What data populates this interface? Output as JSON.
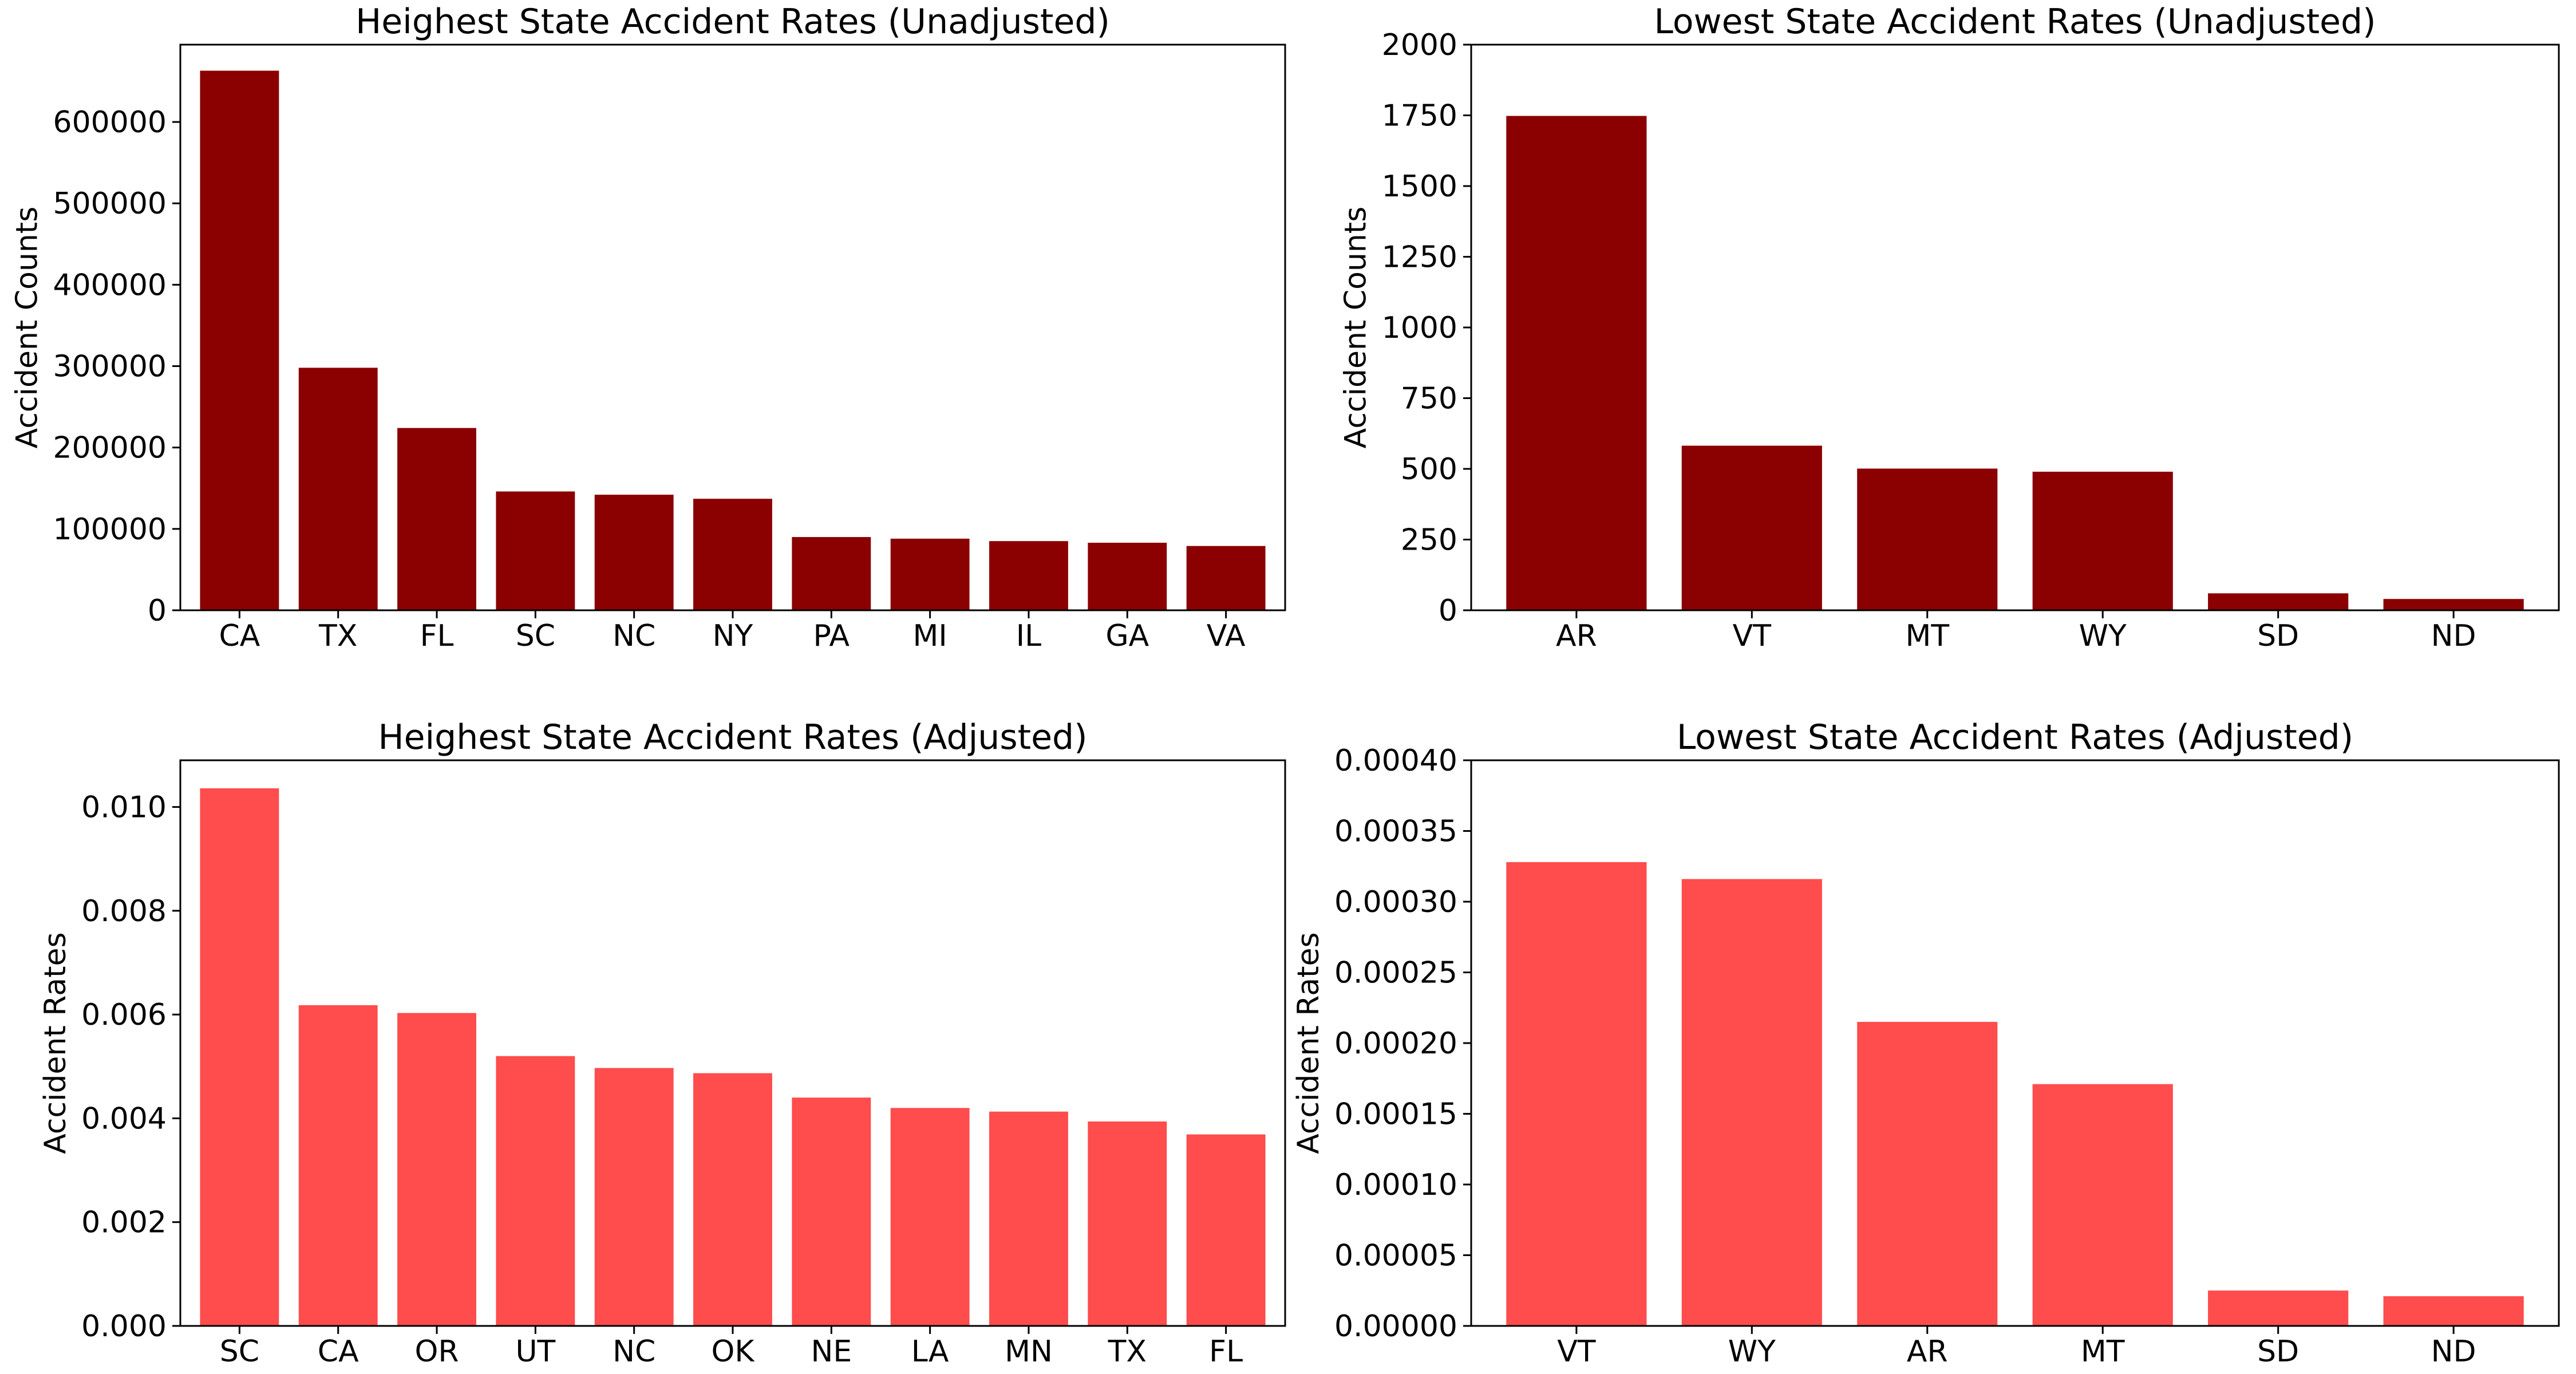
{
  "chart_data": [
    {
      "type": "bar",
      "title": "Heighest State Accident Rates (Unadjusted)",
      "xlabel": "",
      "ylabel": "Accident Counts",
      "categories": [
        "CA",
        "TX",
        "FL",
        "SC",
        "NC",
        "NY",
        "PA",
        "MI",
        "IL",
        "GA",
        "VA"
      ],
      "values": [
        663000,
        298000,
        224000,
        146000,
        142000,
        137000,
        90000,
        88000,
        85000,
        83000,
        79000
      ],
      "ylim": [
        0,
        695000
      ],
      "yticks": [
        0,
        100000,
        200000,
        300000,
        400000,
        500000,
        600000
      ],
      "ytick_labels": [
        "0",
        "100000",
        "200000",
        "300000",
        "400000",
        "500000",
        "600000"
      ],
      "color": "#8b0000",
      "grid": false
    },
    {
      "type": "bar",
      "title": "Lowest State Accident Rates (Unadjusted)",
      "xlabel": "",
      "ylabel": "Accident Counts",
      "categories": [
        "AR",
        "VT",
        "MT",
        "WY",
        "SD",
        "ND"
      ],
      "values": [
        1748,
        582,
        501,
        490,
        60,
        40
      ],
      "ylim": [
        0,
        2000
      ],
      "yticks": [
        0,
        250,
        500,
        750,
        1000,
        1250,
        1500,
        1750,
        2000
      ],
      "ytick_labels": [
        "0",
        "250",
        "500",
        "750",
        "1000",
        "1250",
        "1500",
        "1750",
        "2000"
      ],
      "color": "#8b0000",
      "grid": false
    },
    {
      "type": "bar",
      "title": "Heighest State Accident Rates (Adjusted)",
      "xlabel": "",
      "ylabel": "Accident Rates",
      "categories": [
        "SC",
        "CA",
        "OR",
        "UT",
        "NC",
        "OK",
        "NE",
        "LA",
        "MN",
        "TX",
        "FL"
      ],
      "values": [
        0.01036,
        0.00618,
        0.00603,
        0.0052,
        0.00497,
        0.00487,
        0.0044,
        0.0042,
        0.00413,
        0.00394,
        0.00369
      ],
      "ylim": [
        0,
        0.0109
      ],
      "yticks": [
        0,
        0.002,
        0.004,
        0.006,
        0.008,
        0.01
      ],
      "ytick_labels": [
        "0.000",
        "0.002",
        "0.004",
        "0.006",
        "0.008",
        "0.010"
      ],
      "color": "#ff4c4c",
      "grid": false
    },
    {
      "type": "bar",
      "title": "Lowest State Accident Rates (Adjusted)",
      "xlabel": "",
      "ylabel": "Accident Rates",
      "categories": [
        "VT",
        "WY",
        "AR",
        "MT",
        "SD",
        "ND"
      ],
      "values": [
        0.000328,
        0.000316,
        0.000215,
        0.000171,
        2.5e-05,
        2.1e-05
      ],
      "ylim": [
        0,
        0.0004
      ],
      "yticks": [
        0,
        5e-05,
        0.0001,
        0.00015,
        0.0002,
        0.00025,
        0.0003,
        0.00035,
        0.0004
      ],
      "ytick_labels": [
        "0.00000",
        "0.00005",
        "0.00010",
        "0.00015",
        "0.00020",
        "0.00025",
        "0.00030",
        "0.00035",
        "0.00040"
      ],
      "color": "#ff4c4c",
      "grid": false
    }
  ]
}
